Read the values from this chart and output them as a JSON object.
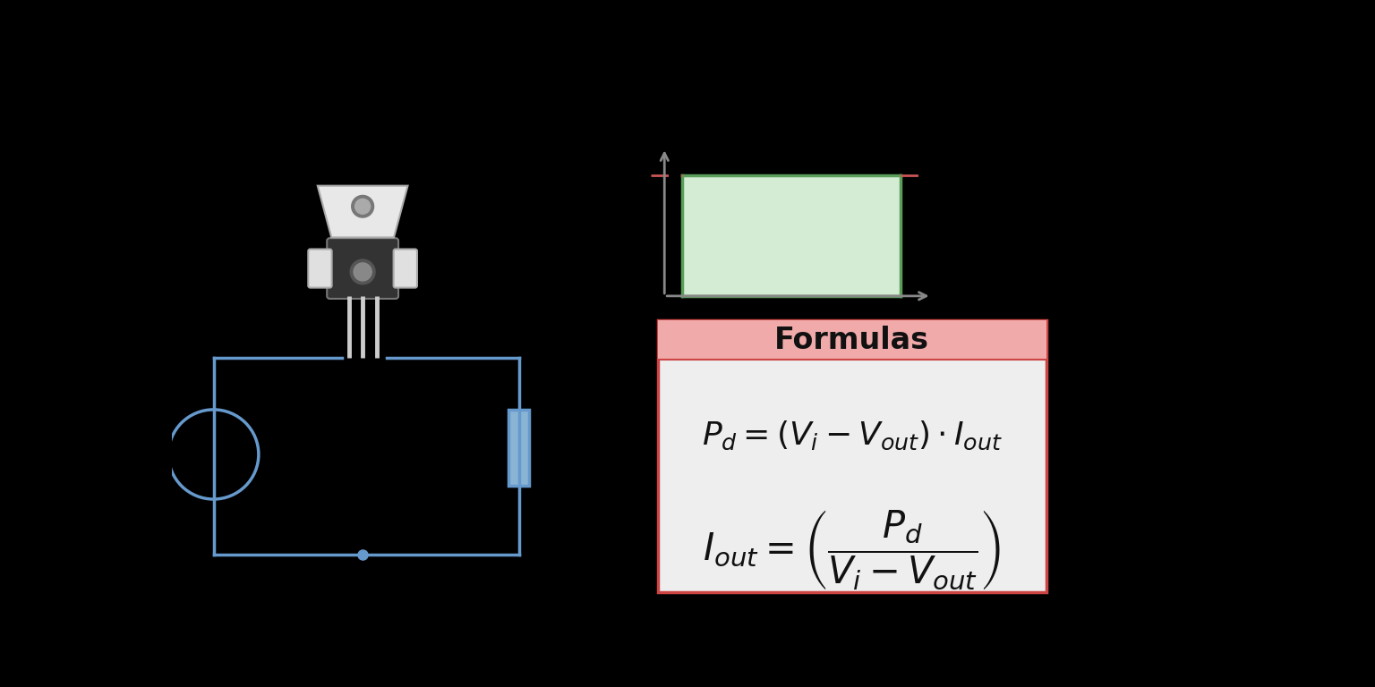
{
  "bg_color": "#000000",
  "circuit_color": "#6699cc",
  "circuit_linewidth": 2.5,
  "graph_line_color": "#5a9e5a",
  "graph_fill_color": "#d4ecd4",
  "graph_dashed_color": "#cc5555",
  "formula_bg": "#eeeeee",
  "formula_header_bg": "#f0aaaa",
  "formula_border_color": "#cc4444",
  "formula_title": "Formulas",
  "formula1": "$P_d = (V_i - V_{out}) \\cdot I_{out}$",
  "formula2": "$I_{out} = \\left( \\dfrac{P_d}{V_i - V_{out}} \\right)$"
}
